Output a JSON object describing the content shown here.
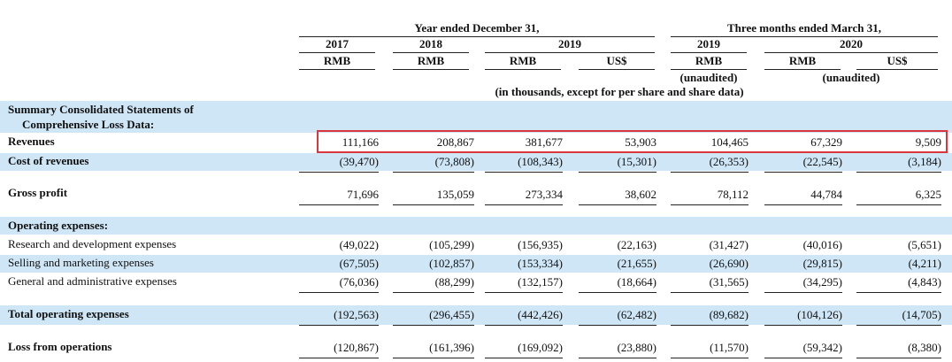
{
  "header": {
    "year_group": "Year ended December 31,",
    "quarter_group": "Three months ended March 31,",
    "years": [
      "2017",
      "2018",
      "2019",
      "2019",
      "2020"
    ],
    "currencies": [
      "RMB",
      "RMB",
      "RMB",
      "US$",
      "RMB",
      "RMB",
      "US$"
    ],
    "unaudited_1": "(unaudited)",
    "unaudited_2": "(unaudited)",
    "note": "(in thousands, except for per share and share data)"
  },
  "rows": [
    {
      "label": "Summary Consolidated Statements of",
      "label2": "Comprehensive Loss Data:",
      "values": []
    },
    {
      "label": "Revenues",
      "values": [
        "111,166",
        "208,867",
        "381,677",
        "53,903",
        "104,465",
        "67,329",
        "9,509"
      ]
    },
    {
      "label": "Cost of revenues",
      "values": [
        "(39,470)",
        "(73,808)",
        "(108,343)",
        "(15,301)",
        "(26,353)",
        "(22,545)",
        "(3,184)"
      ]
    },
    {
      "label": "Gross profit",
      "values": [
        "71,696",
        "135,059",
        "273,334",
        "38,602",
        "78,112",
        "44,784",
        "6,325"
      ]
    },
    {
      "label": "Operating expenses:",
      "values": []
    },
    {
      "label": "Research and development expenses",
      "values": [
        "(49,022)",
        "(105,299)",
        "(156,935)",
        "(22,163)",
        "(31,427)",
        "(40,016)",
        "(5,651)"
      ]
    },
    {
      "label": "Selling and marketing expenses",
      "values": [
        "(67,505)",
        "(102,857)",
        "(153,334)",
        "(21,655)",
        "(26,690)",
        "(29,815)",
        "(4,211)"
      ]
    },
    {
      "label": "General and administrative expenses",
      "values": [
        "(76,036)",
        "(88,299)",
        "(132,157)",
        "(18,664)",
        "(31,565)",
        "(34,295)",
        "(4,843)"
      ]
    },
    {
      "label": "Total operating expenses",
      "values": [
        "(192,563)",
        "(296,455)",
        "(442,426)",
        "(62,482)",
        "(89,682)",
        "(104,126)",
        "(14,705)"
      ]
    },
    {
      "label": "Loss from operations",
      "values": [
        "(120,867)",
        "(161,396)",
        "(169,092)",
        "(23,880)",
        "(11,570)",
        "(59,342)",
        "(8,380)"
      ]
    }
  ]
}
